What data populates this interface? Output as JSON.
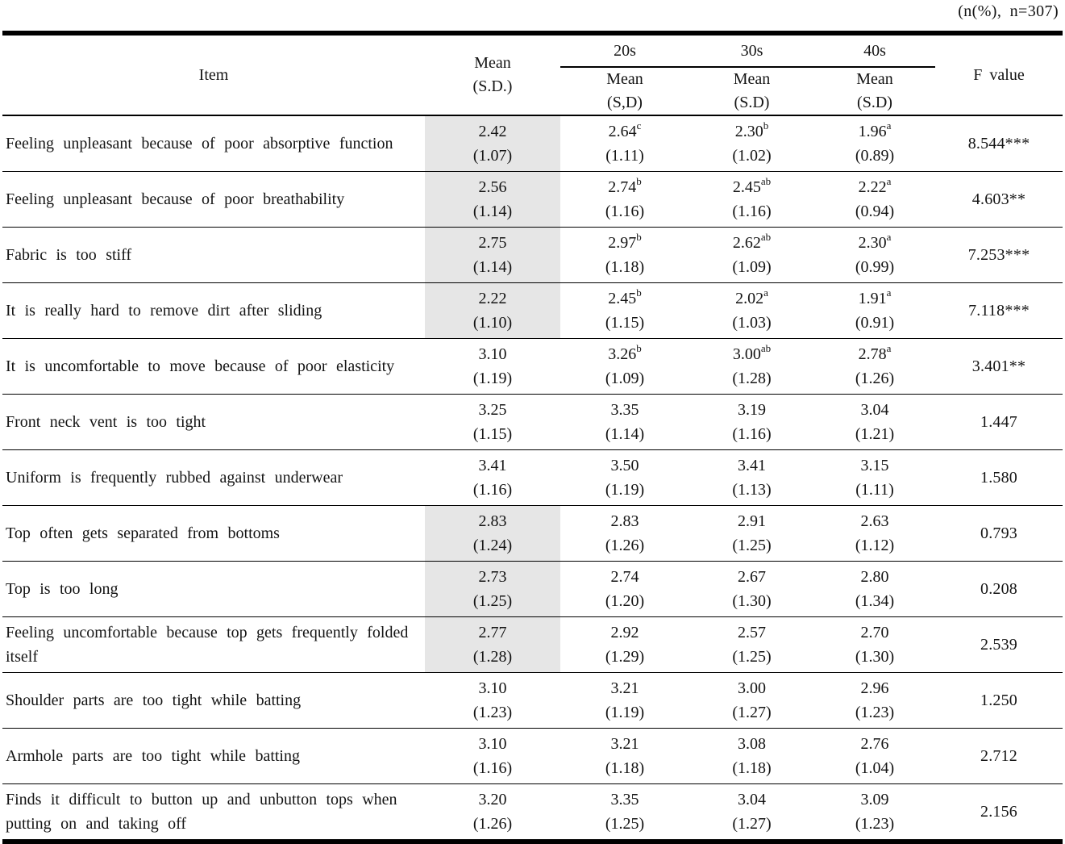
{
  "note": "(n(%), n=307)",
  "table": {
    "item_header": "Item",
    "mean_header": {
      "line1": "Mean",
      "line2": "(S.D.)"
    },
    "f_header": "F value",
    "shading_color": "#e6e6e6",
    "age_groups": [
      {
        "label": "20s",
        "mean_label": "Mean",
        "sd_label": "(S,D)"
      },
      {
        "label": "30s",
        "mean_label": "Mean",
        "sd_label": "(S.D)"
      },
      {
        "label": "40s",
        "mean_label": "Mean",
        "sd_label": "(S.D)"
      }
    ],
    "rows": [
      {
        "item": "Feeling unpleasant because of poor absorptive function",
        "shaded": true,
        "overall": {
          "mean": "2.42",
          "sd": "(1.07)"
        },
        "groups": [
          {
            "mean": "2.64",
            "sup": "c",
            "sd": "(1.11)"
          },
          {
            "mean": "2.30",
            "sup": "b",
            "sd": "(1.02)"
          },
          {
            "mean": "1.96",
            "sup": "a",
            "sd": "(0.89)"
          }
        ],
        "f_value": "8.544***"
      },
      {
        "item": "Feeling unpleasant because of poor breathability",
        "shaded": true,
        "overall": {
          "mean": "2.56",
          "sd": "(1.14)"
        },
        "groups": [
          {
            "mean": "2.74",
            "sup": "b",
            "sd": "(1.16)"
          },
          {
            "mean": "2.45",
            "sup": "ab",
            "sd": "(1.16)"
          },
          {
            "mean": "2.22",
            "sup": "a",
            "sd": "(0.94)"
          }
        ],
        "f_value": "4.603**"
      },
      {
        "item": "Fabric is too stiff",
        "shaded": true,
        "overall": {
          "mean": "2.75",
          "sd": "(1.14)"
        },
        "groups": [
          {
            "mean": "2.97",
            "sup": "b",
            "sd": "(1.18)"
          },
          {
            "mean": "2.62",
            "sup": "ab",
            "sd": "(1.09)"
          },
          {
            "mean": "2.30",
            "sup": "a",
            "sd": "(0.99)"
          }
        ],
        "f_value": "7.253***"
      },
      {
        "item": "It is really hard to remove dirt after sliding",
        "shaded": true,
        "overall": {
          "mean": "2.22",
          "sd": "(1.10)"
        },
        "groups": [
          {
            "mean": "2.45",
            "sup": "b",
            "sd": "(1.15)"
          },
          {
            "mean": "2.02",
            "sup": "a",
            "sd": "(1.03)"
          },
          {
            "mean": "1.91",
            "sup": "a",
            "sd": "(0.91)"
          }
        ],
        "f_value": "7.118***"
      },
      {
        "item": "It is uncomfortable to move because of poor elasticity",
        "shaded": false,
        "overall": {
          "mean": "3.10",
          "sd": "(1.19)"
        },
        "groups": [
          {
            "mean": "3.26",
            "sup": "b",
            "sd": "(1.09)"
          },
          {
            "mean": "3.00",
            "sup": "ab",
            "sd": "(1.28)"
          },
          {
            "mean": "2.78",
            "sup": "a",
            "sd": "(1.26)"
          }
        ],
        "f_value": "3.401**"
      },
      {
        "item": "Front neck vent is too tight",
        "shaded": false,
        "overall": {
          "mean": "3.25",
          "sd": "(1.15)"
        },
        "groups": [
          {
            "mean": "3.35",
            "sup": "",
            "sd": "(1.14)"
          },
          {
            "mean": "3.19",
            "sup": "",
            "sd": "(1.16)"
          },
          {
            "mean": "3.04",
            "sup": "",
            "sd": "(1.21)"
          }
        ],
        "f_value": "1.447"
      },
      {
        "item": "Uniform is frequently rubbed against underwear",
        "shaded": false,
        "overall": {
          "mean": "3.41",
          "sd": "(1.16)"
        },
        "groups": [
          {
            "mean": "3.50",
            "sup": "",
            "sd": "(1.19)"
          },
          {
            "mean": "3.41",
            "sup": "",
            "sd": "(1.13)"
          },
          {
            "mean": "3.15",
            "sup": "",
            "sd": "(1.11)"
          }
        ],
        "f_value": "1.580"
      },
      {
        "item": "Top often gets separated from bottoms",
        "shaded": true,
        "overall": {
          "mean": "2.83",
          "sd": "(1.24)"
        },
        "groups": [
          {
            "mean": "2.83",
            "sup": "",
            "sd": "(1.26)"
          },
          {
            "mean": "2.91",
            "sup": "",
            "sd": "(1.25)"
          },
          {
            "mean": "2.63",
            "sup": "",
            "sd": "(1.12)"
          }
        ],
        "f_value": "0.793"
      },
      {
        "item": "Top is too long",
        "shaded": true,
        "overall": {
          "mean": "2.73",
          "sd": "(1.25)"
        },
        "groups": [
          {
            "mean": "2.74",
            "sup": "",
            "sd": "(1.20)"
          },
          {
            "mean": "2.67",
            "sup": "",
            "sd": "(1.30)"
          },
          {
            "mean": "2.80",
            "sup": "",
            "sd": "(1.34)"
          }
        ],
        "f_value": "0.208"
      },
      {
        "item": "Feeling uncomfortable because top gets frequently folded itself",
        "shaded": true,
        "overall": {
          "mean": "2.77",
          "sd": "(1.28)"
        },
        "groups": [
          {
            "mean": "2.92",
            "sup": "",
            "sd": "(1.29)"
          },
          {
            "mean": "2.57",
            "sup": "",
            "sd": "(1.25)"
          },
          {
            "mean": "2.70",
            "sup": "",
            "sd": "(1.30)"
          }
        ],
        "f_value": "2.539"
      },
      {
        "item": "Shoulder parts are too tight while batting",
        "shaded": false,
        "overall": {
          "mean": "3.10",
          "sd": "(1.23)"
        },
        "groups": [
          {
            "mean": "3.21",
            "sup": "",
            "sd": "(1.19)"
          },
          {
            "mean": "3.00",
            "sup": "",
            "sd": "(1.27)"
          },
          {
            "mean": "2.96",
            "sup": "",
            "sd": "(1.23)"
          }
        ],
        "f_value": "1.250"
      },
      {
        "item": "Armhole parts are too tight while batting",
        "shaded": false,
        "overall": {
          "mean": "3.10",
          "sd": "(1.16)"
        },
        "groups": [
          {
            "mean": "3.21",
            "sup": "",
            "sd": "(1.18)"
          },
          {
            "mean": "3.08",
            "sup": "",
            "sd": "(1.18)"
          },
          {
            "mean": "2.76",
            "sup": "",
            "sd": "(1.04)"
          }
        ],
        "f_value": "2.712"
      },
      {
        "item": "Finds it difficult to button up and unbutton tops when putting on and taking off",
        "shaded": false,
        "overall": {
          "mean": "3.20",
          "sd": "(1.26)"
        },
        "groups": [
          {
            "mean": "3.35",
            "sup": "",
            "sd": "(1.25)"
          },
          {
            "mean": "3.04",
            "sup": "",
            "sd": "(1.27)"
          },
          {
            "mean": "3.09",
            "sup": "",
            "sd": "(1.23)"
          }
        ],
        "f_value": "2.156"
      }
    ]
  }
}
